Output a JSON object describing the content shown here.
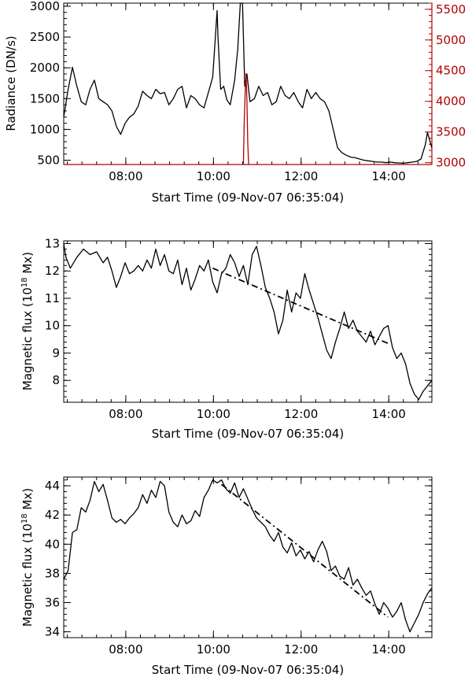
{
  "chart_data": [
    {
      "type": "line",
      "xlabel": "Start Time (09-Nov-07 06:35:04)",
      "ylabel": "Radiance (DN/s)",
      "x_units": "hours since 06:35:04",
      "xlim": [
        0,
        8.4
      ],
      "ylim": [
        430,
        3050
      ],
      "y2lim": [
        2970,
        5600
      ],
      "x_tick_labels": [
        "08:00",
        "10:00",
        "12:00",
        "14:00"
      ],
      "y_ticks": [
        500,
        1000,
        1500,
        2000,
        2500,
        3000
      ],
      "y2_ticks": [
        3000,
        3500,
        4000,
        4500,
        5000,
        5500
      ],
      "colors": {
        "series1": "#000000",
        "series2": "#b40000"
      },
      "series": [
        {
          "axis": "left",
          "x": [
            0.0,
            0.1,
            0.2,
            0.3,
            0.4,
            0.5,
            0.6,
            0.7,
            0.8,
            0.9,
            1.0,
            1.1,
            1.2,
            1.3,
            1.4,
            1.5,
            1.6,
            1.7,
            1.8,
            1.9,
            2.0,
            2.1,
            2.2,
            2.3,
            2.4,
            2.5,
            2.6,
            2.7,
            2.8,
            2.9,
            3.0,
            3.1,
            3.2,
            3.3,
            3.4,
            3.5,
            3.52,
            3.58,
            3.65,
            3.72,
            3.8,
            3.9,
            3.97,
            4.03,
            4.08,
            4.13,
            4.18,
            4.25,
            4.35,
            4.45,
            4.55,
            4.65,
            4.75,
            4.85,
            4.95,
            5.05,
            5.15,
            5.25,
            5.35,
            5.45,
            5.55,
            5.65,
            5.75,
            5.85,
            5.95,
            6.05,
            6.15,
            6.25,
            6.35,
            6.45,
            6.55,
            6.65,
            6.75,
            6.85,
            6.95,
            7.05,
            7.15,
            7.25,
            7.35,
            7.45,
            7.55,
            7.65,
            7.75,
            7.85,
            7.95,
            8.05,
            8.15,
            8.25,
            8.3,
            8.4
          ],
          "y": [
            1200,
            1650,
            2010,
            1700,
            1450,
            1400,
            1650,
            1800,
            1500,
            1450,
            1400,
            1300,
            1050,
            920,
            1100,
            1200,
            1250,
            1380,
            1620,
            1550,
            1500,
            1650,
            1580,
            1600,
            1400,
            1500,
            1650,
            1700,
            1350,
            1550,
            1500,
            1400,
            1350,
            1600,
            1850,
            2930,
            2500,
            1650,
            1700,
            1480,
            1400,
            1800,
            2300,
            3050,
            3050,
            1700,
            1900,
            1450,
            1500,
            1700,
            1550,
            1600,
            1400,
            1450,
            1700,
            1550,
            1500,
            1600,
            1450,
            1350,
            1650,
            1500,
            1600,
            1500,
            1450,
            1300,
            1000,
            700,
            620,
            580,
            550,
            540,
            520,
            500,
            490,
            480,
            470,
            470,
            460,
            470,
            460,
            455,
            450,
            460,
            470,
            480,
            520,
            750,
            950,
            700
          ]
        },
        {
          "axis": "right",
          "x": [
            0.0,
            4.1,
            4.12,
            4.14,
            4.16,
            4.18,
            4.2,
            4.22,
            8.4
          ],
          "y": [
            2970,
            2970,
            3700,
            4150,
            4450,
            4000,
            3300,
            2970,
            2970
          ]
        }
      ]
    },
    {
      "type": "line",
      "xlabel": "Start Time (09-Nov-07 06:35:04)",
      "ylabel_prefix": "Magnetic flux (10",
      "ylabel_exponent": "18",
      "ylabel_suffix": " Mx)",
      "x_units": "hours since 06:35:04",
      "xlim": [
        0,
        8.4
      ],
      "ylim": [
        7.2,
        13.1
      ],
      "x_tick_labels": [
        "08:00",
        "10:00",
        "12:00",
        "14:00"
      ],
      "y_ticks": [
        8,
        9,
        10,
        11,
        12,
        13
      ],
      "series": [
        {
          "x": [
            0.0,
            0.05,
            0.15,
            0.3,
            0.45,
            0.6,
            0.75,
            0.9,
            1.0,
            1.1,
            1.2,
            1.3,
            1.4,
            1.5,
            1.6,
            1.7,
            1.8,
            1.9,
            2.0,
            2.1,
            2.2,
            2.3,
            2.4,
            2.5,
            2.6,
            2.7,
            2.8,
            2.9,
            3.0,
            3.1,
            3.2,
            3.3,
            3.4,
            3.5,
            3.6,
            3.7,
            3.8,
            3.9,
            4.0,
            4.1,
            4.2,
            4.3,
            4.4,
            4.5,
            4.6,
            4.7,
            4.8,
            4.9,
            5.0,
            5.1,
            5.2,
            5.3,
            5.4,
            5.5,
            5.6,
            5.7,
            5.8,
            5.9,
            6.0,
            6.1,
            6.2,
            6.3,
            6.4,
            6.5,
            6.6,
            6.7,
            6.8,
            6.9,
            7.0,
            7.1,
            7.2,
            7.3,
            7.4,
            7.5,
            7.6,
            7.7,
            7.8,
            7.9,
            8.0,
            8.1,
            8.2,
            8.3,
            8.4
          ],
          "y": [
            13.0,
            12.5,
            12.1,
            12.5,
            12.8,
            12.6,
            12.7,
            12.3,
            12.5,
            12.0,
            11.4,
            11.8,
            12.3,
            11.9,
            12.0,
            12.2,
            12.0,
            12.4,
            12.1,
            12.8,
            12.2,
            12.6,
            12.0,
            11.9,
            12.4,
            11.5,
            12.1,
            11.3,
            11.7,
            12.2,
            12.0,
            12.4,
            11.6,
            11.2,
            11.9,
            12.1,
            12.6,
            12.3,
            11.8,
            12.2,
            11.5,
            12.6,
            12.9,
            12.2,
            11.4,
            11.0,
            10.5,
            9.7,
            10.2,
            11.3,
            10.5,
            11.2,
            11.0,
            11.9,
            11.3,
            10.8,
            10.3,
            9.7,
            9.1,
            8.8,
            9.4,
            9.9,
            10.5,
            9.9,
            10.2,
            9.8,
            9.6,
            9.4,
            9.8,
            9.3,
            9.6,
            9.9,
            10.0,
            9.2,
            8.8,
            9.0,
            8.6,
            7.9,
            7.5,
            7.3,
            7.6,
            7.8,
            8.0
          ]
        },
        {
          "style": "dash-dot",
          "x": [
            3.4,
            7.4
          ],
          "y": [
            12.1,
            9.35
          ]
        }
      ]
    },
    {
      "type": "line",
      "xlabel": "Start Time (09-Nov-07 06:35:04)",
      "ylabel_prefix": "Magnetic flux (10",
      "ylabel_exponent": "18",
      "ylabel_suffix": " Mx)",
      "x_units": "hours since 06:35:04",
      "xlim": [
        0,
        8.4
      ],
      "ylim": [
        33.6,
        44.6
      ],
      "x_tick_labels": [
        "08:00",
        "10:00",
        "12:00",
        "14:00"
      ],
      "y_ticks": [
        34,
        36,
        38,
        40,
        42,
        44
      ],
      "series": [
        {
          "x": [
            0.0,
            0.1,
            0.2,
            0.3,
            0.4,
            0.5,
            0.6,
            0.7,
            0.8,
            0.9,
            1.0,
            1.1,
            1.2,
            1.3,
            1.4,
            1.5,
            1.6,
            1.7,
            1.8,
            1.9,
            2.0,
            2.1,
            2.2,
            2.3,
            2.4,
            2.5,
            2.6,
            2.7,
            2.8,
            2.9,
            3.0,
            3.1,
            3.2,
            3.3,
            3.4,
            3.5,
            3.6,
            3.7,
            3.8,
            3.9,
            4.0,
            4.1,
            4.2,
            4.3,
            4.4,
            4.5,
            4.6,
            4.7,
            4.8,
            4.9,
            5.0,
            5.1,
            5.2,
            5.3,
            5.4,
            5.5,
            5.6,
            5.7,
            5.8,
            5.9,
            6.0,
            6.1,
            6.2,
            6.3,
            6.4,
            6.5,
            6.6,
            6.7,
            6.8,
            6.9,
            7.0,
            7.1,
            7.2,
            7.3,
            7.4,
            7.5,
            7.6,
            7.7,
            7.8,
            7.9,
            8.0,
            8.1,
            8.2,
            8.3,
            8.4
          ],
          "y": [
            37.6,
            38.2,
            40.8,
            41.0,
            42.5,
            42.2,
            43.0,
            44.3,
            43.6,
            44.1,
            43.0,
            41.8,
            41.5,
            41.7,
            41.4,
            41.8,
            42.1,
            42.5,
            43.4,
            42.8,
            43.7,
            43.2,
            44.3,
            44.0,
            42.2,
            41.5,
            41.2,
            42.0,
            41.4,
            41.6,
            42.3,
            41.9,
            43.2,
            43.7,
            44.4,
            44.2,
            44.4,
            43.8,
            43.5,
            44.2,
            43.2,
            43.8,
            43.1,
            42.4,
            41.8,
            41.5,
            41.2,
            40.6,
            40.2,
            40.8,
            39.8,
            39.4,
            40.1,
            39.2,
            39.6,
            39.0,
            39.5,
            38.8,
            39.6,
            40.2,
            39.5,
            38.2,
            38.5,
            37.8,
            37.6,
            38.4,
            37.2,
            37.6,
            37.0,
            36.5,
            36.8,
            35.9,
            35.2,
            36.0,
            35.6,
            35.0,
            35.4,
            36.0,
            34.8,
            34.0,
            34.6,
            35.2,
            36.0,
            36.6,
            37.0
          ]
        },
        {
          "style": "dash-dot",
          "x": [
            3.6,
            7.4
          ],
          "y": [
            44.1,
            35.0
          ]
        }
      ]
    }
  ]
}
